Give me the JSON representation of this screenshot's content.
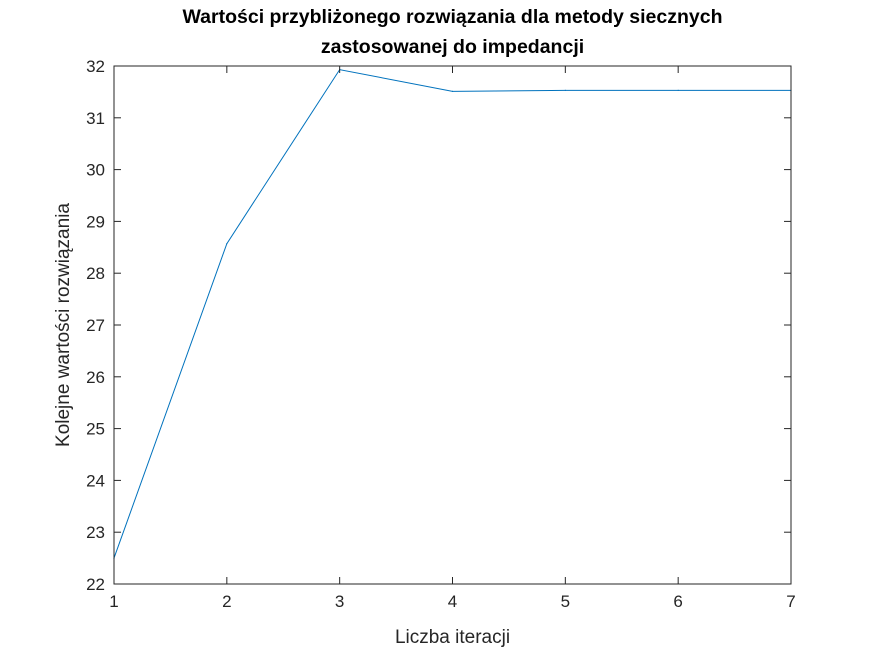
{
  "chart_data": {
    "type": "line",
    "title": [
      "Wartości przybliżonego rozwiązania dla metody siecznych",
      "zastosowanej do impedancji"
    ],
    "xlabel": "Liczba iteracji",
    "ylabel": "Kolejne wartości rozwiązania",
    "xlim": [
      1,
      7
    ],
    "ylim": [
      22,
      32
    ],
    "xticks": [
      1,
      2,
      3,
      4,
      5,
      6,
      7
    ],
    "yticks": [
      22,
      23,
      24,
      25,
      26,
      27,
      28,
      29,
      30,
      31,
      32
    ],
    "grid": false,
    "series": [
      {
        "color": "#0072bd",
        "x": [
          1,
          2,
          3,
          4,
          5,
          6,
          7
        ],
        "y": [
          22.5,
          28.57,
          31.93,
          31.51,
          31.53,
          31.53,
          31.53
        ]
      }
    ]
  }
}
